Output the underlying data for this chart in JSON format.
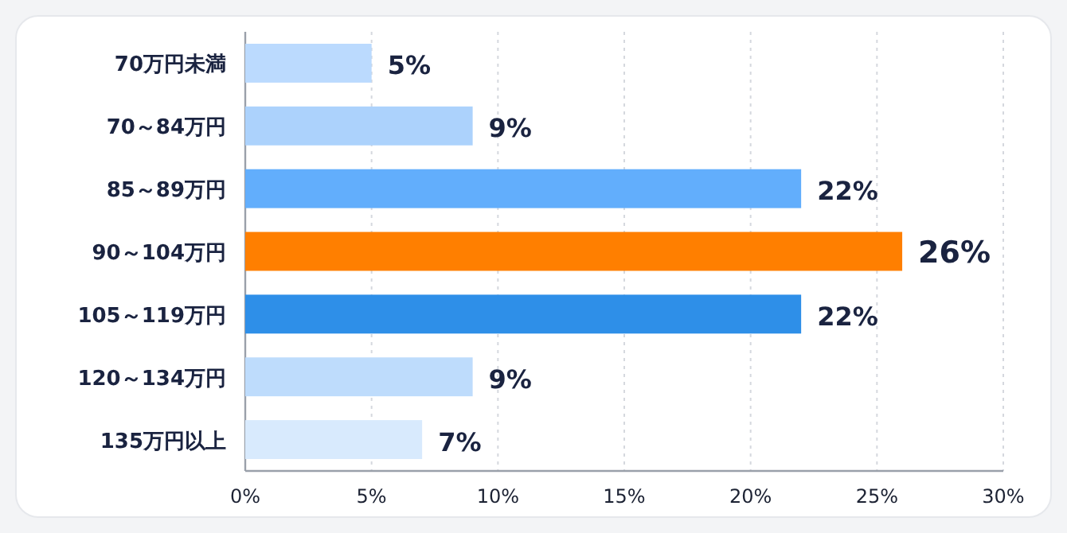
{
  "chart_data": {
    "type": "bar",
    "orientation": "horizontal",
    "categories": [
      "70万円未満",
      "70～84万円",
      "85～89万円",
      "90～104万円",
      "105～119万円",
      "120～134万円",
      "135万円以上"
    ],
    "values": [
      5,
      9,
      22,
      26,
      22,
      9,
      7
    ],
    "value_labels": [
      "5%",
      "9%",
      "22%",
      "26%",
      "22%",
      "9%",
      "7%"
    ],
    "colors": [
      "#bbdafe",
      "#acd2fc",
      "#62aefc",
      "#ff7f00",
      "#2e8fe8",
      "#bedcfc",
      "#d8eafd"
    ],
    "xlim": [
      0,
      30
    ],
    "xticks": [
      {
        "value": 0,
        "label": "0%"
      },
      {
        "value": 5,
        "label": "5%"
      },
      {
        "value": 10,
        "label": "10%"
      },
      {
        "value": 15,
        "label": "15%"
      },
      {
        "value": 20,
        "label": "20%"
      },
      {
        "value": 25,
        "label": "25%"
      },
      {
        "value": 30,
        "label": "30%"
      }
    ],
    "grid": "x"
  }
}
